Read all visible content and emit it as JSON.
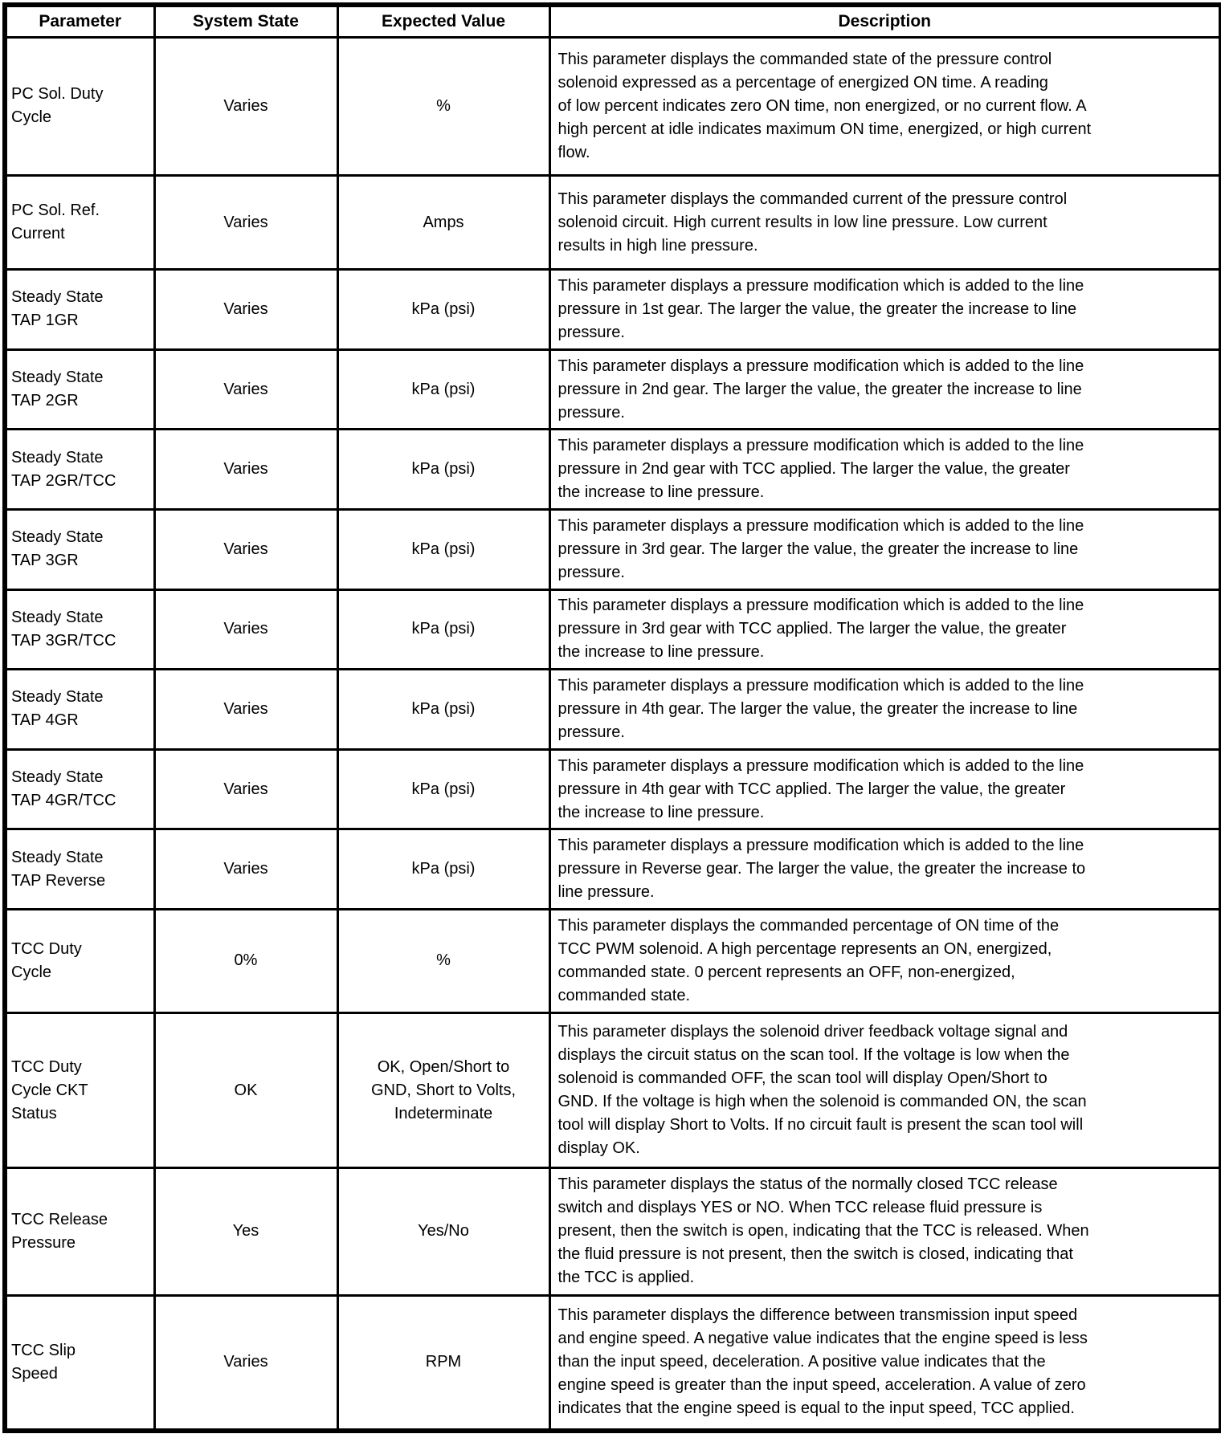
{
  "table": {
    "columns": [
      "Parameter",
      "System State",
      "Expected Value",
      "Description"
    ],
    "rows": [
      {
        "parameter": "PC Sol. Duty\nCycle",
        "system_state": "Varies",
        "expected_value": "%",
        "description": "This parameter displays the commanded state of the pressure control\nsolenoid expressed as a percentage of energized ON time. A reading\nof low percent indicates zero ON time, non energized, or no current flow. A\nhigh percent at idle indicates maximum ON time, energized, or high current\nflow."
      },
      {
        "parameter": "PC Sol. Ref.\nCurrent",
        "system_state": "Varies",
        "expected_value": "Amps",
        "description": "This parameter displays the commanded current of the pressure control\nsolenoid circuit. High current results in low line pressure. Low current\nresults in high line pressure."
      },
      {
        "parameter": "Steady State\nTAP 1GR",
        "system_state": "Varies",
        "expected_value": "kPa (psi)",
        "description": "This parameter displays a pressure modification which is added to the line\npressure in 1st gear. The larger the value, the greater the increase to line\npressure."
      },
      {
        "parameter": "Steady State\nTAP 2GR",
        "system_state": "Varies",
        "expected_value": "kPa (psi)",
        "description": "This parameter displays a pressure modification which is added to the line\npressure in 2nd gear. The larger the value, the greater the increase to line\npressure."
      },
      {
        "parameter": "Steady State\nTAP 2GR/TCC",
        "system_state": "Varies",
        "expected_value": "kPa (psi)",
        "description": "This parameter displays a pressure modification which is added to the line\npressure in 2nd gear with TCC applied. The larger the value, the greater\nthe increase to line pressure."
      },
      {
        "parameter": "Steady State\nTAP 3GR",
        "system_state": "Varies",
        "expected_value": "kPa (psi)",
        "description": "This parameter displays a pressure modification which is added to the line\npressure in 3rd gear. The larger the value, the greater the increase to line\npressure."
      },
      {
        "parameter": "Steady State\nTAP 3GR/TCC",
        "system_state": "Varies",
        "expected_value": "kPa (psi)",
        "description": "This parameter displays a pressure modification which is added to the line\npressure in 3rd gear with TCC applied. The larger the value, the greater\nthe increase to line pressure."
      },
      {
        "parameter": "Steady State\nTAP 4GR",
        "system_state": "Varies",
        "expected_value": "kPa (psi)",
        "description": "This parameter displays a pressure modification which is added to the line\npressure in 4th gear. The larger the value, the greater the increase to line\npressure."
      },
      {
        "parameter": "Steady State\nTAP 4GR/TCC",
        "system_state": "Varies",
        "expected_value": "kPa (psi)",
        "description": "This parameter displays a pressure modification which is added to the line\npressure in 4th gear with TCC applied. The larger the value, the greater\nthe increase to line pressure."
      },
      {
        "parameter": "Steady State\nTAP Reverse",
        "system_state": "Varies",
        "expected_value": "kPa (psi)",
        "description": "This parameter displays a pressure modification which is added to the line\npressure in Reverse gear. The larger the value, the greater the increase to\nline pressure."
      },
      {
        "parameter": "TCC Duty\nCycle",
        "system_state": "0%",
        "expected_value": "%",
        "description": "This parameter displays the commanded percentage of ON time of the\nTCC PWM solenoid. A high percentage represents an ON, energized,\ncommanded state. 0 percent represents an OFF, non-energized,\ncommanded state."
      },
      {
        "parameter": "TCC Duty\nCycle CKT\nStatus",
        "system_state": "OK",
        "expected_value": "OK, Open/Short to\nGND, Short to Volts,\nIndeterminate",
        "description": "This parameter displays the solenoid driver feedback voltage signal and\ndisplays the circuit status on the scan tool. If the voltage is low when the\nsolenoid is commanded OFF, the scan tool will display Open/Short to\nGND. If the voltage is high when the solenoid is commanded ON, the scan\ntool will display Short to Volts. If no circuit fault is present the scan tool will\ndisplay OK."
      },
      {
        "parameter": "TCC Release\nPressure",
        "system_state": "Yes",
        "expected_value": "Yes/No",
        "description": "This parameter displays the status of the normally closed TCC release\nswitch and displays YES or NO. When TCC release fluid pressure is\npresent, then the switch is open, indicating that the TCC is released. When\nthe fluid pressure is not present, then the switch is closed, indicating that\nthe TCC is applied."
      },
      {
        "parameter": "TCC Slip\nSpeed",
        "system_state": "Varies",
        "expected_value": "RPM",
        "description": "This parameter displays the difference between transmission input speed\nand engine speed. A negative value indicates that the engine speed is less\nthan the input speed, deceleration. A positive value indicates that the\nengine speed is greater than the input speed, acceleration. A value of zero\nindicates that the engine speed is equal to the input speed, TCC applied."
      }
    ]
  }
}
